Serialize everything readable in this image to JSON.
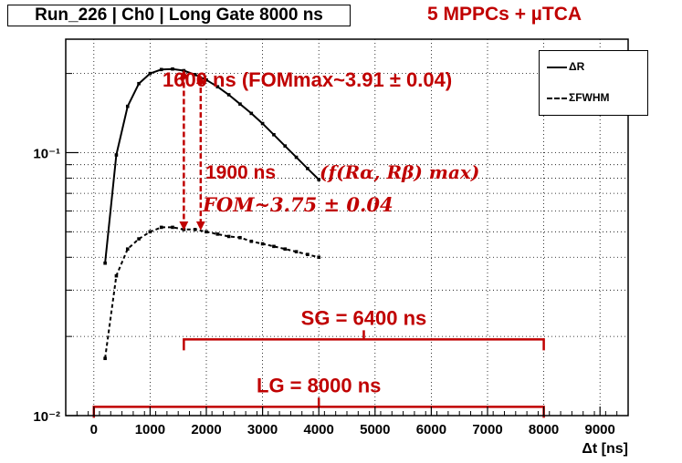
{
  "title": "Run_226 | Ch0 | Long Gate 8000 ns",
  "subtitle": "5 MPPCs + µTCA",
  "legend": [
    {
      "label": "ΔR",
      "style": "solid"
    },
    {
      "label": "ΣFWHM",
      "style": "dashed"
    }
  ],
  "colors": {
    "accent": "#c00000",
    "line": "#000000"
  },
  "annotations": {
    "top_max": "1600 ns (FOMmax~3.91 ± 0.04)",
    "second_ns": "1900 ns",
    "second_func": "(f(Rα, Rβ) max)",
    "second_fom": "FOM~3.75 ± 0.04",
    "sg": "SG = 6400 ns",
    "lg": "LG = 8000 ns"
  },
  "chart_data": {
    "type": "line",
    "xlabel": "Δt [ns]",
    "ylabel": "",
    "yscale": "log",
    "xlim": [
      -500,
      9500
    ],
    "ylim": [
      0.01,
      0.27
    ],
    "xticks": [
      0,
      1000,
      2000,
      3000,
      4000,
      5000,
      6000,
      7000,
      8000,
      9000
    ],
    "xtick_labels": [
      "0",
      "1000",
      "2000",
      "3000",
      "4000",
      "5000",
      "6000",
      "7000",
      "8000",
      "9000"
    ],
    "yticks": [
      0.01,
      0.1
    ],
    "ytick_labels": [
      "10⁻²",
      "10⁻¹"
    ],
    "grid": true,
    "series": [
      {
        "name": "ΔR",
        "style": "solid",
        "x": [
          200,
          400,
          600,
          800,
          1000,
          1200,
          1400,
          1600,
          1800,
          2000,
          2200,
          2400,
          2600,
          2800,
          3000,
          3200,
          3400,
          3600,
          3800,
          4000
        ],
        "y": [
          0.038,
          0.098,
          0.15,
          0.183,
          0.2,
          0.207,
          0.208,
          0.205,
          0.198,
          0.189,
          0.178,
          0.166,
          0.153,
          0.141,
          0.129,
          0.117,
          0.106,
          0.096,
          0.087,
          0.079
        ]
      },
      {
        "name": "ΣFWHM",
        "style": "dashed",
        "x": [
          200,
          400,
          600,
          800,
          1000,
          1200,
          1400,
          1600,
          1800,
          2000,
          2200,
          2400,
          2600,
          2800,
          3000,
          3200,
          3400,
          3600,
          3800,
          4000
        ],
        "y": [
          0.0165,
          0.034,
          0.043,
          0.047,
          0.05,
          0.052,
          0.052,
          0.051,
          0.051,
          0.05,
          0.049,
          0.048,
          0.0475,
          0.046,
          0.045,
          0.044,
          0.043,
          0.042,
          0.041,
          0.04
        ]
      }
    ],
    "markers": [
      {
        "x": 1600,
        "from": 0.051,
        "to": 0.205
      },
      {
        "x": 1900,
        "from": 0.051,
        "to": 0.196
      }
    ],
    "brackets": [
      {
        "label": "SG = 6400 ns",
        "x0": 1600,
        "x1": 8000,
        "y": 0.0195
      },
      {
        "label": "LG = 8000 ns",
        "x0": 0,
        "x1": 8000,
        "y": 0.0108
      }
    ]
  }
}
